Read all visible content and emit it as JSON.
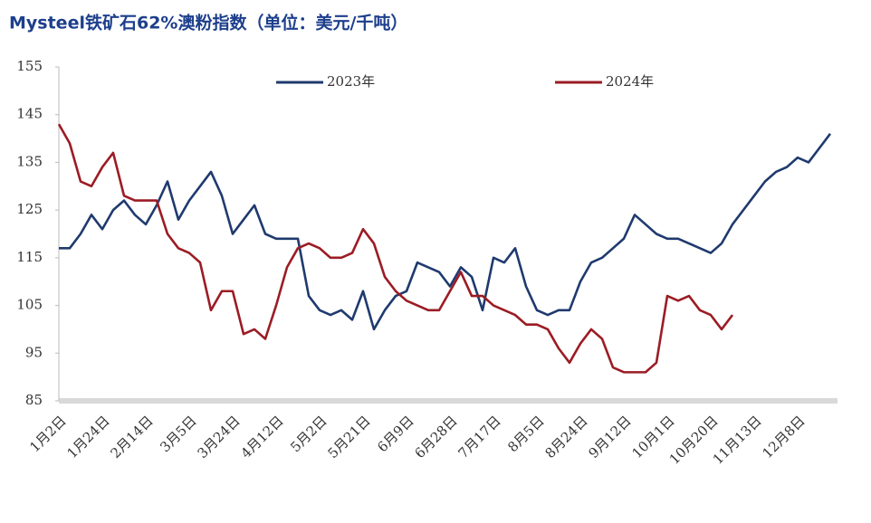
{
  "chart_data": {
    "type": "line",
    "title": "Mysteel铁矿石62%澳粉指数（单位：美元/千吨）",
    "categories": [
      "1月2日",
      null,
      null,
      null,
      "1月24日",
      null,
      null,
      null,
      "2月14日",
      null,
      null,
      null,
      "3月5日",
      null,
      null,
      null,
      "3月24日",
      null,
      null,
      null,
      "4月12日",
      null,
      null,
      null,
      "5月2日",
      null,
      null,
      null,
      "5月21日",
      null,
      null,
      null,
      "6月9日",
      null,
      null,
      null,
      "6月28日",
      null,
      null,
      null,
      "7月17日",
      null,
      null,
      null,
      "8月5日",
      null,
      null,
      null,
      "8月24日",
      null,
      null,
      null,
      "9月12日",
      null,
      null,
      null,
      "10月1日",
      null,
      null,
      null,
      "10月20日",
      null,
      null,
      null,
      "11月13日",
      null,
      null,
      null,
      "12月8日",
      null,
      null,
      null
    ],
    "series": [
      {
        "name": "2023年",
        "color": "#1f3a6e",
        "values": [
          117,
          117,
          120,
          124,
          121,
          125,
          127,
          124,
          122,
          126,
          131,
          123,
          127,
          130,
          133,
          128,
          120,
          123,
          126,
          120,
          119,
          119,
          119,
          107,
          104,
          103,
          104,
          102,
          108,
          100,
          104,
          107,
          108,
          114,
          113,
          112,
          109,
          113,
          111,
          104,
          115,
          114,
          117,
          109,
          104,
          103,
          104,
          104,
          110,
          114,
          115,
          117,
          119,
          124,
          122,
          120,
          119,
          119,
          118,
          117,
          116,
          118,
          122,
          125,
          128,
          131,
          133,
          134,
          136,
          135,
          138,
          141
        ]
      },
      {
        "name": "2024年",
        "color": "#9b1c24",
        "values": [
          143,
          139,
          131,
          130,
          134,
          137,
          128,
          127,
          127,
          127,
          120,
          117,
          116,
          114,
          104,
          108,
          108,
          99,
          100,
          98,
          105,
          113,
          117,
          118,
          117,
          115,
          115,
          116,
          121,
          118,
          111,
          108,
          106,
          105,
          104,
          104,
          108,
          112,
          107,
          107,
          105,
          104,
          103,
          101,
          101,
          100,
          96,
          93,
          97,
          100,
          98,
          92,
          91,
          91,
          91,
          93,
          107,
          106,
          107,
          104,
          103,
          100,
          103,
          null,
          null,
          null,
          null,
          null,
          null,
          null,
          null,
          null
        ]
      }
    ],
    "ylim": [
      85,
      155
    ],
    "yticks": [
      85,
      95,
      105,
      115,
      125,
      135,
      145,
      155
    ]
  }
}
